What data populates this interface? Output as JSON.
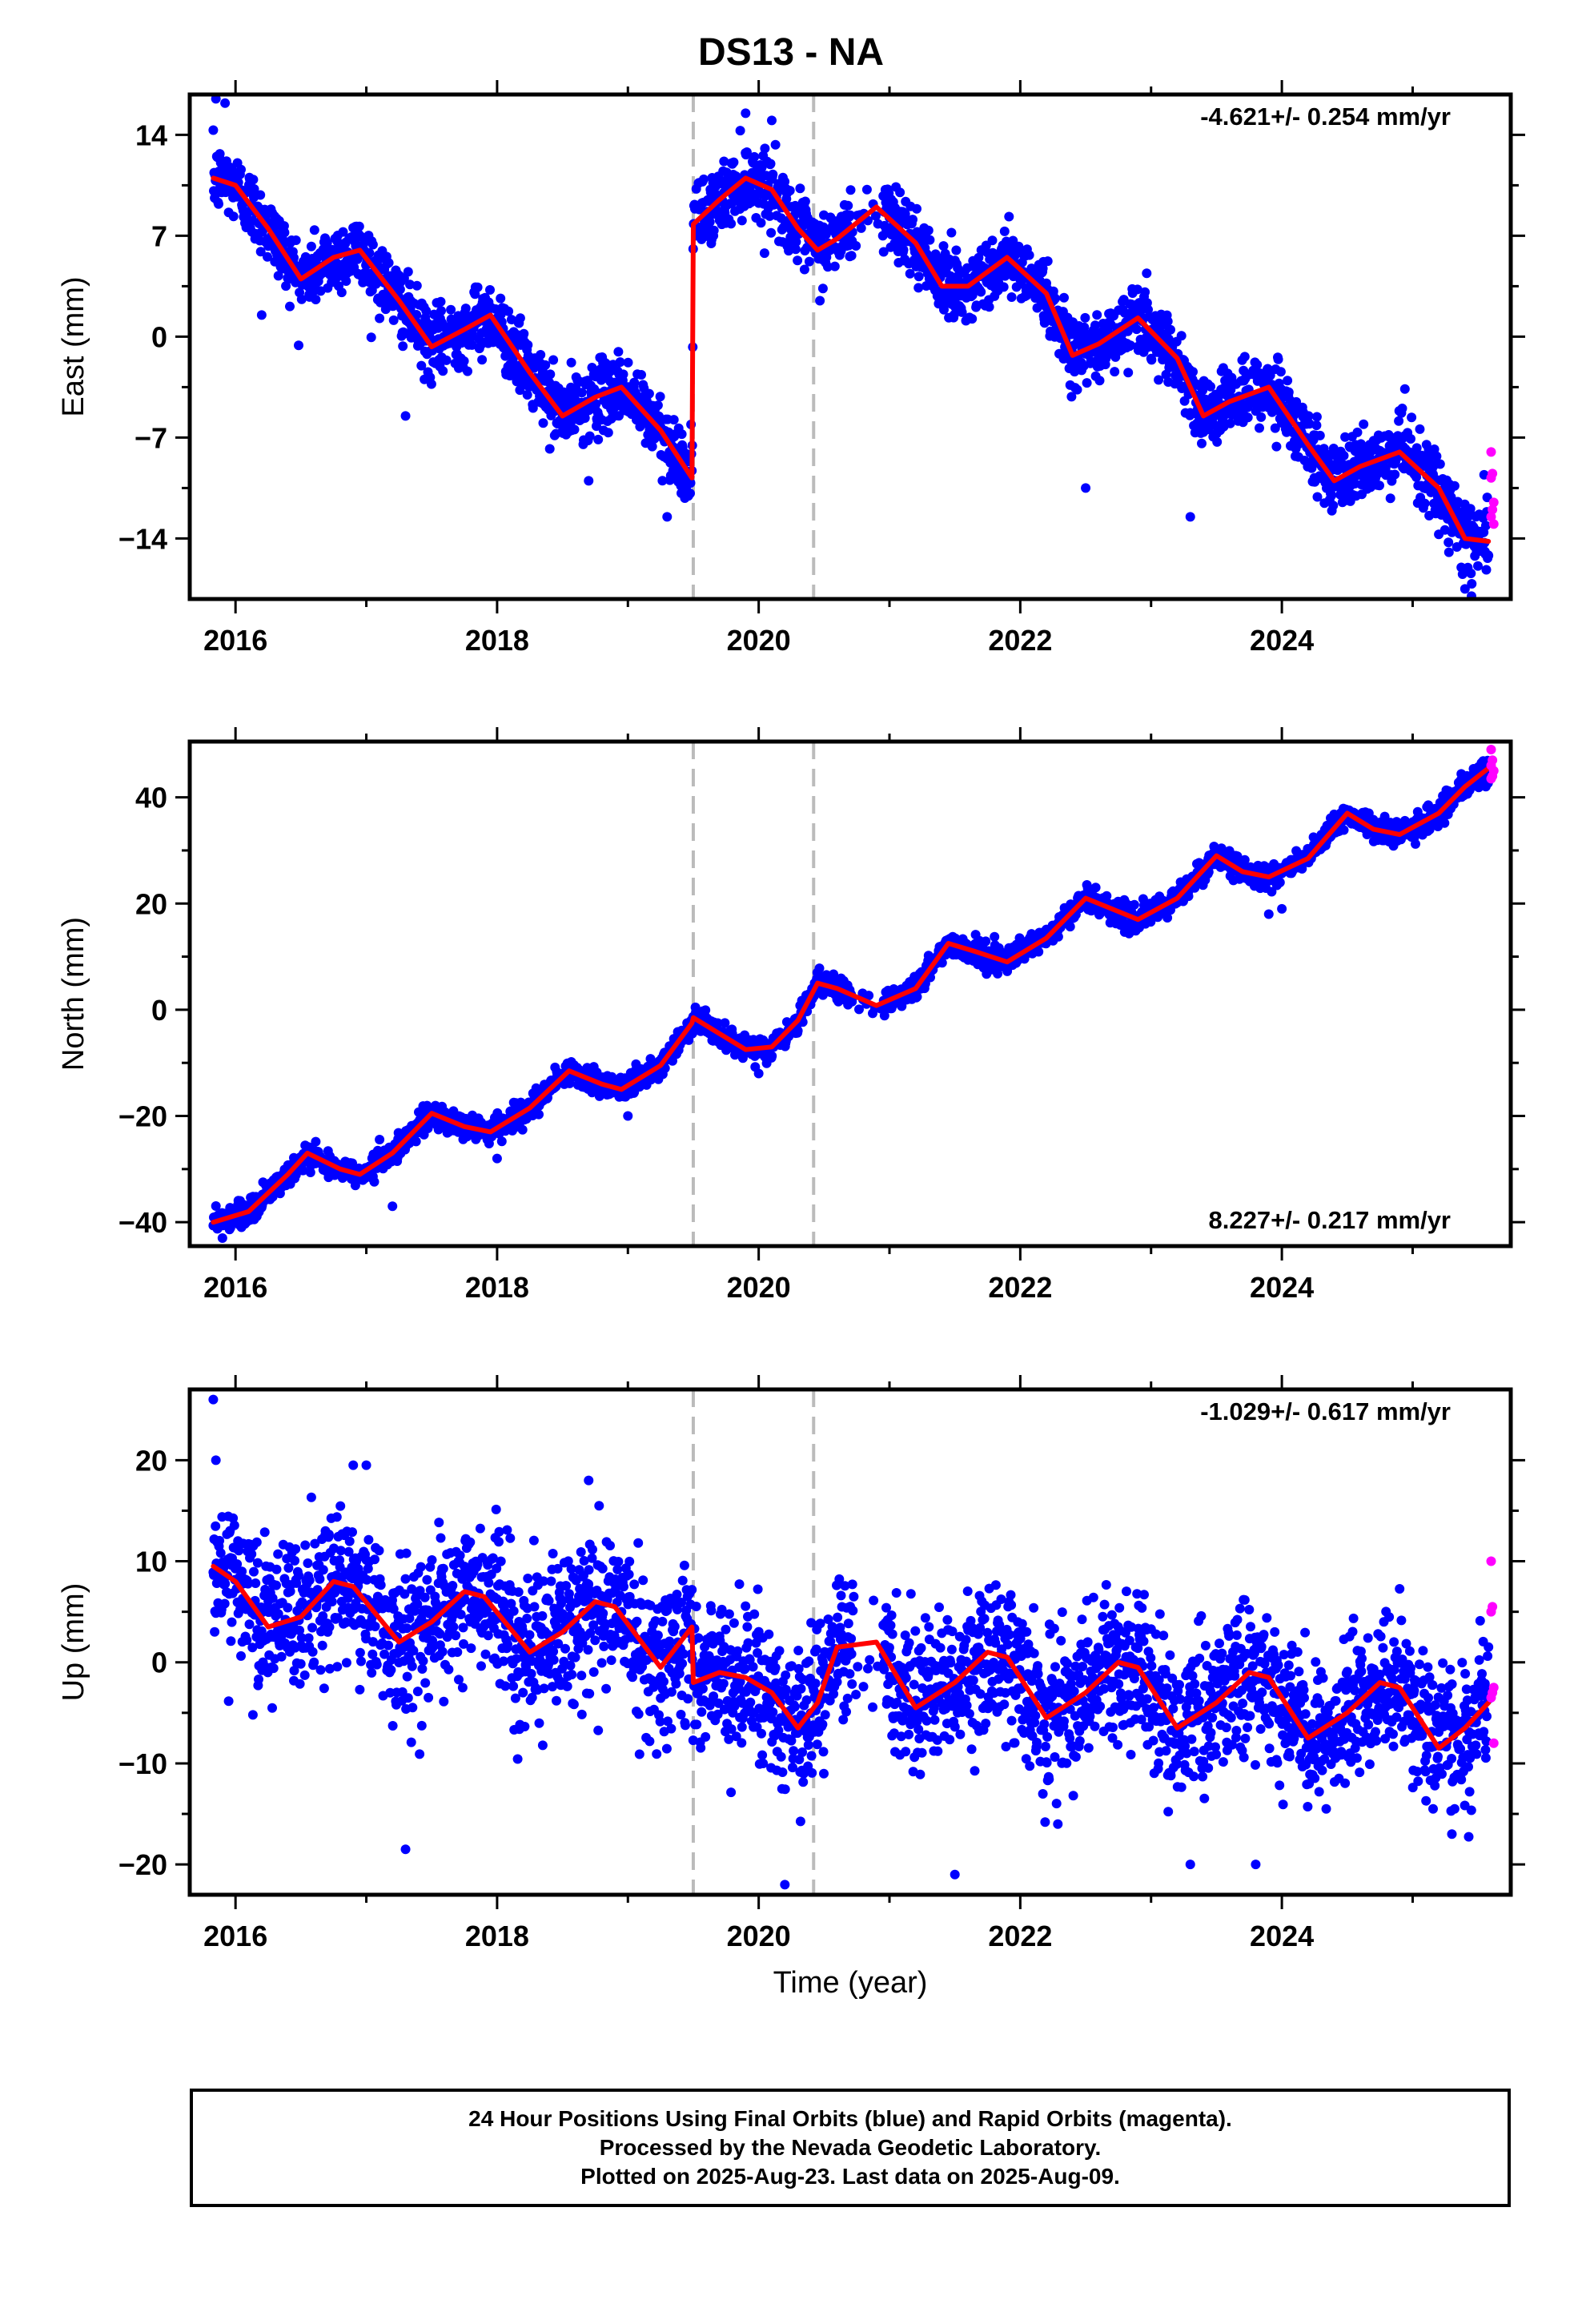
{
  "title": "DS13 - NA",
  "xlabel": "Time (year)",
  "caption": [
    "24 Hour Positions Using Final Orbits (blue) and Rapid Orbits (magenta).",
    "Processed by the Nevada Geodetic Laboratory.",
    "Plotted on 2025-Aug-23. Last data on 2025-Aug-09."
  ],
  "colors": {
    "final_orbits": "#0000ff",
    "rapid_orbits": "#ff00ff",
    "model": "#ff0000",
    "event_lines": "#bbbbbb"
  },
  "chart_data": [
    {
      "type": "scatter",
      "ylabel": "East (mm)",
      "rate_label": "-4.621+/- 0.254 mm/yr",
      "rate_position": "top-right",
      "xlim": [
        2015.65,
        2025.75
      ],
      "ylim": [
        -18.2,
        16.8
      ],
      "xticks": [
        2016,
        2018,
        2020,
        2022,
        2024
      ],
      "xtick_labels": [
        "2016",
        "2018",
        "2020",
        "2022",
        "2024"
      ],
      "yticks": [
        14,
        7,
        0,
        -7,
        -14
      ],
      "ytick_labels": [
        "14",
        "7",
        "0",
        "−7",
        "−14"
      ],
      "event_lines_x": [
        2019.5,
        2020.42
      ],
      "model_line": {
        "x": [
          2015.83,
          2016.0,
          2016.25,
          2016.5,
          2016.75,
          2016.95,
          2017.25,
          2017.5,
          2017.75,
          2017.95,
          2018.25,
          2018.5,
          2018.75,
          2018.95,
          2019.25,
          2019.49,
          2019.5,
          2019.7,
          2019.9,
          2020.1,
          2020.3,
          2020.45,
          2020.6,
          2020.9,
          2021.2,
          2021.4,
          2021.6,
          2021.9,
          2022.2,
          2022.4,
          2022.6,
          2022.9,
          2023.2,
          2023.4,
          2023.6,
          2023.9,
          2024.2,
          2024.4,
          2024.6,
          2024.9,
          2025.2,
          2025.4,
          2025.58
        ],
        "y": [
          11,
          10.5,
          7.5,
          4,
          5.5,
          6,
          2.5,
          -0.7,
          0.5,
          1.5,
          -2.5,
          -5.5,
          -4.2,
          -3.5,
          -6.5,
          -9.8,
          7.8,
          9.5,
          11,
          10.2,
          7.5,
          6,
          6.8,
          9,
          6.5,
          3.5,
          3.5,
          5.5,
          3,
          -1.3,
          -0.5,
          1.3,
          -1.5,
          -5.5,
          -4.5,
          -3.5,
          -7.5,
          -10,
          -9,
          -8,
          -10.5,
          -14,
          -14.2
        ]
      },
      "points": {
        "x_start": 2015.83,
        "x_end": 2025.58,
        "count": 2900,
        "scatter_sd": 1.2,
        "outliers": [
          [
            2015.85,
            16.5
          ],
          [
            2015.92,
            16.2
          ],
          [
            2016.2,
            1.5
          ],
          [
            2017.3,
            -5.5
          ],
          [
            2018.7,
            -10
          ],
          [
            2019.3,
            -12.5
          ],
          [
            2019.9,
            15.5
          ],
          [
            2020.1,
            15
          ],
          [
            2022.5,
            -10.5
          ],
          [
            2023.3,
            -12.5
          ],
          [
            2025.4,
            -17.5
          ],
          [
            2025.45,
            -18
          ]
        ]
      },
      "rapid_points": {
        "x": [
          2025.6,
          2025.61,
          2025.6,
          2025.62,
          2025.61,
          2025.6,
          2025.62
        ],
        "y": [
          -8,
          -9.5,
          -9.8,
          -11.5,
          -12,
          -12.5,
          -13
        ]
      }
    },
    {
      "type": "scatter",
      "ylabel": "North (mm)",
      "rate_label": "8.227+/- 0.217 mm/yr",
      "rate_position": "bottom-right",
      "xlim": [
        2015.65,
        2025.75
      ],
      "ylim": [
        -44.5,
        50.5
      ],
      "xticks": [
        2016,
        2018,
        2020,
        2022,
        2024
      ],
      "xtick_labels": [
        "2016",
        "2018",
        "2020",
        "2022",
        "2024"
      ],
      "yticks": [
        40,
        20,
        0,
        -20,
        -40
      ],
      "ytick_labels": [
        "40",
        "20",
        "0",
        "−20",
        "−40"
      ],
      "event_lines_x": [
        2019.5,
        2020.42
      ],
      "model_line": {
        "x": [
          2015.83,
          2016.1,
          2016.4,
          2016.55,
          2016.8,
          2016.95,
          2017.2,
          2017.5,
          2017.75,
          2017.95,
          2018.25,
          2018.55,
          2018.8,
          2018.95,
          2019.25,
          2019.49,
          2019.5,
          2019.7,
          2019.9,
          2020.1,
          2020.3,
          2020.45,
          2020.6,
          2020.9,
          2021.2,
          2021.45,
          2021.65,
          2021.9,
          2022.2,
          2022.5,
          2022.7,
          2022.9,
          2023.2,
          2023.5,
          2023.7,
          2023.9,
          2024.2,
          2024.5,
          2024.7,
          2024.9,
          2025.2,
          2025.4,
          2025.58
        ],
        "y": [
          -40,
          -38,
          -31,
          -27,
          -30,
          -31,
          -27,
          -19.5,
          -22,
          -23,
          -18.5,
          -11.5,
          -14,
          -15,
          -10.5,
          -2.5,
          -1.5,
          -4.5,
          -7.5,
          -7,
          -2,
          5,
          4,
          0.8,
          4,
          12.5,
          11,
          9,
          13.5,
          21,
          19,
          17,
          21,
          29,
          26,
          25,
          28.5,
          37,
          34,
          33,
          37,
          42,
          45.5
        ]
      },
      "points": {
        "x_start": 2015.83,
        "x_end": 2025.58,
        "count": 2900,
        "scatter_sd": 1.1,
        "outliers": [
          [
            2015.9,
            -43
          ],
          [
            2017.2,
            -37
          ],
          [
            2018.0,
            -28
          ],
          [
            2019.0,
            -20
          ],
          [
            2020.0,
            -12
          ],
          [
            2023.9,
            18
          ],
          [
            2024.0,
            19
          ]
        ]
      },
      "rapid_points": {
        "x": [
          2025.6,
          2025.61,
          2025.6,
          2025.62,
          2025.61,
          2025.6
        ],
        "y": [
          49,
          47,
          46,
          45,
          44,
          43.5
        ]
      }
    },
    {
      "type": "scatter",
      "ylabel": "Up (mm)",
      "rate_label": "-1.029+/- 0.617 mm/yr",
      "rate_position": "top-right",
      "xlim": [
        2015.65,
        2025.75
      ],
      "ylim": [
        -23,
        27
      ],
      "xticks": [
        2016,
        2018,
        2020,
        2022,
        2024
      ],
      "xtick_labels": [
        "2016",
        "2018",
        "2020",
        "2022",
        "2024"
      ],
      "yticks": [
        20,
        10,
        0,
        -10,
        -20
      ],
      "ytick_labels": [
        "20",
        "10",
        "0",
        "−10",
        "−20"
      ],
      "event_lines_x": [
        2019.5,
        2020.42
      ],
      "model_line": {
        "x": [
          2015.83,
          2016.0,
          2016.25,
          2016.5,
          2016.75,
          2016.9,
          2017.25,
          2017.5,
          2017.75,
          2017.9,
          2018.25,
          2018.5,
          2018.75,
          2018.9,
          2019.25,
          2019.49,
          2019.5,
          2019.7,
          2019.9,
          2020.1,
          2020.3,
          2020.45,
          2020.6,
          2020.9,
          2021.2,
          2021.5,
          2021.75,
          2021.9,
          2022.2,
          2022.5,
          2022.75,
          2022.9,
          2023.2,
          2023.5,
          2023.75,
          2023.9,
          2024.2,
          2024.5,
          2024.75,
          2024.9,
          2025.2,
          2025.4,
          2025.58
        ],
        "y": [
          9.5,
          8,
          3.5,
          4.5,
          8,
          7.5,
          2,
          4,
          7,
          6.5,
          1,
          3,
          6,
          5.5,
          -0.5,
          3.5,
          -2,
          -1,
          -1.5,
          -3,
          -6.5,
          -4,
          1.5,
          2,
          -4.5,
          -2,
          1,
          0.5,
          -5.5,
          -3,
          0,
          -0.5,
          -6.5,
          -4,
          -1,
          -1.5,
          -7.5,
          -5,
          -2,
          -2.5,
          -8.5,
          -6.5,
          -4
        ]
      },
      "points": {
        "x_start": 2015.83,
        "x_end": 2025.58,
        "count": 2900,
        "scatter_sd": 3.6,
        "outliers": [
          [
            2015.83,
            26
          ],
          [
            2015.85,
            20
          ],
          [
            2017.3,
            -18.5
          ],
          [
            2017.0,
            19.5
          ],
          [
            2016.9,
            19.5
          ],
          [
            2018.7,
            18
          ],
          [
            2020.2,
            -22
          ],
          [
            2021.5,
            -21
          ],
          [
            2023.3,
            -20
          ],
          [
            2023.8,
            -20
          ],
          [
            2025.3,
            -17
          ]
        ]
      },
      "rapid_points": {
        "x": [
          2025.6,
          2025.61,
          2025.6,
          2025.62,
          2025.61,
          2025.6,
          2025.62
        ],
        "y": [
          10,
          5.5,
          5,
          -2.5,
          -3,
          -3.5,
          -8
        ]
      }
    }
  ]
}
